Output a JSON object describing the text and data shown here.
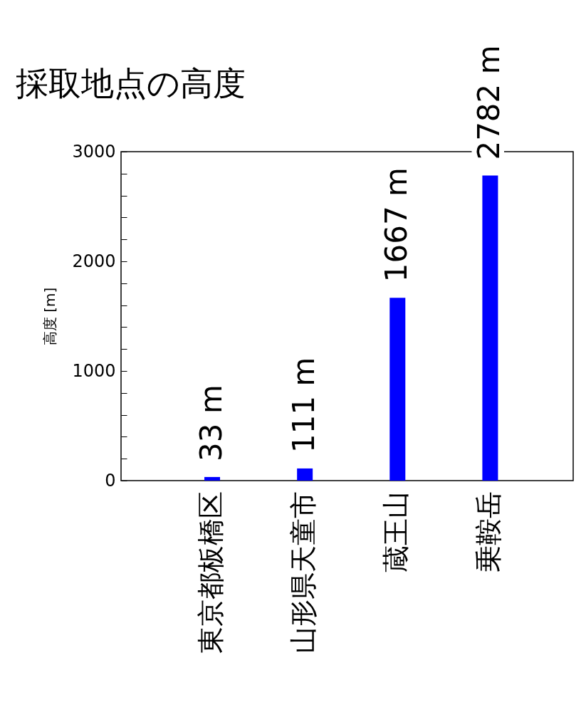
{
  "chart_data": {
    "type": "bar",
    "title": "採取地点の高度",
    "ylabel": "高度 [m]",
    "categories": [
      "東京都板橋区",
      "山形県天童市",
      "蔵王山",
      "乗鞍岳"
    ],
    "values": [
      33,
      111,
      1667,
      2782
    ],
    "color": "#0000ff",
    "value_labels": [
      "33 m",
      "111 m",
      "1667 m",
      "2782 m"
    ],
    "ylim": [
      0,
      3000
    ],
    "yticks": [
      0,
      {
        "value": 200,
        "label": null
      },
      {
        "value": 400,
        "label": null
      },
      {
        "value": 600,
        "label": null
      },
      {
        "value": 800,
        "label": null
      },
      1000,
      {
        "value": 1200,
        "label": null
      },
      {
        "value": 1400,
        "label": null
      },
      {
        "value": 1600,
        "label": null
      },
      {
        "value": 1800,
        "label": null
      },
      2000,
      {
        "value": 2200,
        "label": null
      },
      {
        "value": 2400,
        "label": null
      },
      {
        "value": 2600,
        "label": null
      },
      {
        "value": 2800,
        "label": null
      },
      3000
    ],
    "grid": false
  }
}
